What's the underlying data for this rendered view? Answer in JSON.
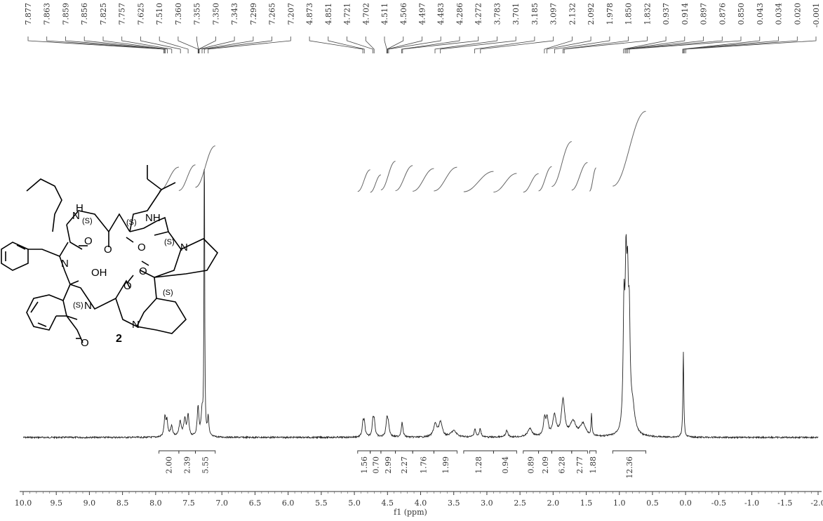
{
  "chart_data": {
    "type": "line",
    "xlabel": "f1 (ppm)",
    "xlim": [
      10.0,
      -2.0
    ],
    "x_reversed": true,
    "x_ticks": [
      "10.0",
      "9.5",
      "9.0",
      "8.5",
      "8.0",
      "7.5",
      "7.0",
      "6.5",
      "6.0",
      "5.5",
      "5.0",
      "4.5",
      "4.0",
      "3.5",
      "3.0",
      "2.5",
      "2.0",
      "1.5",
      "1.0",
      "0.5",
      "0.0",
      "-0.5",
      "-1.0",
      "-1.5",
      "-2.0"
    ],
    "peak_labels": [
      "7.877",
      "7.863",
      "7.859",
      "7.856",
      "7.825",
      "7.757",
      "7.625",
      "7.510",
      "7.360",
      "7.355",
      "7.350",
      "7.343",
      "7.299",
      "7.265",
      "7.207",
      "4.873",
      "4.851",
      "4.721",
      "4.702",
      "4.511",
      "4.506",
      "4.497",
      "4.483",
      "4.286",
      "4.272",
      "3.783",
      "3.701",
      "3.185",
      "3.097",
      "2.132",
      "2.092",
      "1.978",
      "1.850",
      "1.832",
      "0.937",
      "0.914",
      "0.897",
      "0.876",
      "0.850",
      "0.043",
      "0.034",
      "0.020",
      "-0.001"
    ],
    "spectrum": {
      "name": "1H NMR",
      "peaks": [
        {
          "ppm": 7.86,
          "height": 0.09,
          "width": 0.015
        },
        {
          "ppm": 7.83,
          "height": 0.07,
          "width": 0.015
        },
        {
          "ppm": 7.76,
          "height": 0.05,
          "width": 0.02
        },
        {
          "ppm": 7.63,
          "height": 0.07,
          "width": 0.02
        },
        {
          "ppm": 7.56,
          "height": 0.08,
          "width": 0.02
        },
        {
          "ppm": 7.51,
          "height": 0.1,
          "width": 0.015
        },
        {
          "ppm": 7.36,
          "height": 0.14,
          "width": 0.015
        },
        {
          "ppm": 7.3,
          "height": 0.11,
          "width": 0.015
        },
        {
          "ppm": 7.265,
          "height": 1.45,
          "width": 0.006
        },
        {
          "ppm": 7.207,
          "height": 0.09,
          "width": 0.012
        },
        {
          "ppm": 4.87,
          "height": 0.06,
          "width": 0.015
        },
        {
          "ppm": 4.85,
          "height": 0.06,
          "width": 0.015
        },
        {
          "ppm": 4.72,
          "height": 0.07,
          "width": 0.015
        },
        {
          "ppm": 4.7,
          "height": 0.07,
          "width": 0.015
        },
        {
          "ppm": 4.51,
          "height": 0.07,
          "width": 0.015
        },
        {
          "ppm": 4.49,
          "height": 0.06,
          "width": 0.02
        },
        {
          "ppm": 4.28,
          "height": 0.07,
          "width": 0.015
        },
        {
          "ppm": 3.78,
          "height": 0.06,
          "width": 0.03
        },
        {
          "ppm": 3.7,
          "height": 0.07,
          "width": 0.03
        },
        {
          "ppm": 3.5,
          "height": 0.03,
          "width": 0.05
        },
        {
          "ppm": 3.18,
          "height": 0.04,
          "width": 0.015
        },
        {
          "ppm": 3.1,
          "height": 0.04,
          "width": 0.015
        },
        {
          "ppm": 2.7,
          "height": 0.03,
          "width": 0.02
        },
        {
          "ppm": 2.35,
          "height": 0.04,
          "width": 0.04
        },
        {
          "ppm": 2.13,
          "height": 0.08,
          "width": 0.02
        },
        {
          "ppm": 2.09,
          "height": 0.08,
          "width": 0.02
        },
        {
          "ppm": 1.98,
          "height": 0.1,
          "width": 0.03
        },
        {
          "ppm": 1.85,
          "height": 0.17,
          "width": 0.03
        },
        {
          "ppm": 1.7,
          "height": 0.07,
          "width": 0.05
        },
        {
          "ppm": 1.55,
          "height": 0.06,
          "width": 0.05
        },
        {
          "ppm": 1.42,
          "height": 0.1,
          "width": 0.008
        },
        {
          "ppm": 0.93,
          "height": 0.55,
          "width": 0.015
        },
        {
          "ppm": 0.9,
          "height": 0.65,
          "width": 0.015
        },
        {
          "ppm": 0.876,
          "height": 0.55,
          "width": 0.015
        },
        {
          "ppm": 0.85,
          "height": 0.45,
          "width": 0.015
        },
        {
          "ppm": 0.8,
          "height": 0.12,
          "width": 0.04
        },
        {
          "ppm": 0.034,
          "height": 0.41,
          "width": 0.008
        }
      ]
    },
    "integrals": [
      {
        "from": 7.95,
        "to": 7.65,
        "value": "2.00"
      },
      {
        "from": 7.65,
        "to": 7.4,
        "value": "2.39"
      },
      {
        "from": 7.4,
        "to": 7.1,
        "value": "5.55"
      },
      {
        "from": 4.95,
        "to": 4.76,
        "value": "1.56"
      },
      {
        "from": 4.76,
        "to": 4.6,
        "value": "0.70"
      },
      {
        "from": 4.6,
        "to": 4.38,
        "value": "2.99"
      },
      {
        "from": 4.38,
        "to": 4.12,
        "value": "2.27"
      },
      {
        "from": 4.12,
        "to": 3.8,
        "value": "1.76"
      },
      {
        "from": 3.8,
        "to": 3.45,
        "value": "1.99"
      },
      {
        "from": 3.35,
        "to": 2.9,
        "value": "1.28"
      },
      {
        "from": 2.9,
        "to": 2.55,
        "value": "0.94"
      },
      {
        "from": 2.45,
        "to": 2.22,
        "value": "0.89"
      },
      {
        "from": 2.22,
        "to": 2.02,
        "value": "2.09"
      },
      {
        "from": 2.02,
        "to": 1.72,
        "value": "6.28"
      },
      {
        "from": 1.72,
        "to": 1.48,
        "value": "2.77"
      },
      {
        "from": 1.45,
        "to": 1.35,
        "value": "1.88"
      },
      {
        "from": 1.1,
        "to": 0.6,
        "value": "12.36"
      }
    ],
    "structure": {
      "compound_number": "2",
      "atom_labels": [
        "H",
        "N",
        "NH",
        "O",
        "N",
        "OH",
        "N",
        "O",
        "O",
        "N",
        "O",
        "N",
        "O",
        "O"
      ],
      "stereo_labels": [
        "(S)",
        "(S)",
        "(S)",
        "(S)",
        "(S)"
      ]
    }
  }
}
